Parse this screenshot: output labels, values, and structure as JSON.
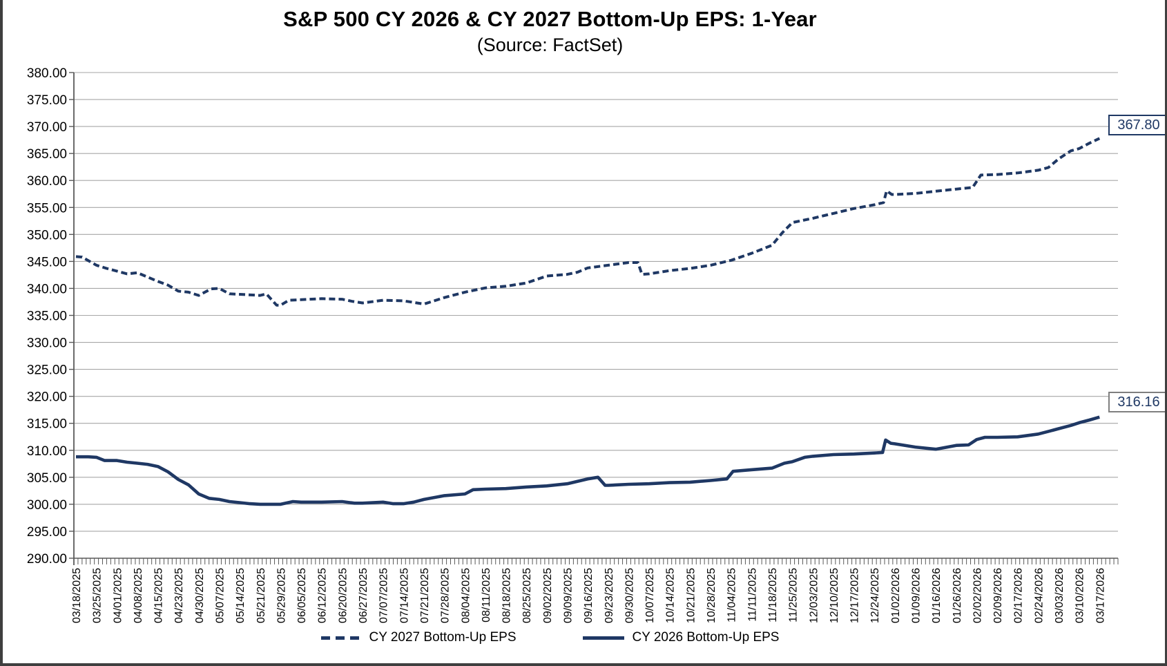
{
  "chart": {
    "title": "S&P 500 CY 2026 & CY 2027 Bottom-Up EPS: 1-Year",
    "subtitle": "(Source: FactSet)"
  },
  "chart_data": {
    "type": "line",
    "title": "S&P 500 CY 2026 & CY 2027 Bottom-Up EPS: 1-Year",
    "subtitle": "(Source: FactSet)",
    "grid": true,
    "legend_position": "bottom",
    "y_axis": {
      "min": 290,
      "max": 380,
      "step": 5
    },
    "y_labels": [
      "380.00",
      "375.00",
      "370.00",
      "365.00",
      "360.00",
      "355.00",
      "350.00",
      "345.00",
      "340.00",
      "335.00",
      "330.00",
      "325.00",
      "320.00",
      "315.00",
      "310.00",
      "305.00",
      "300.00",
      "295.00",
      "290.00"
    ],
    "x_labels": [
      "03/18/2025",
      "03/25/2025",
      "04/01/2025",
      "04/08/2025",
      "04/15/2025",
      "04/23/2025",
      "04/30/2025",
      "05/07/2025",
      "05/14/2025",
      "05/21/2025",
      "05/29/2025",
      "06/05/2025",
      "06/12/2025",
      "06/20/2025",
      "06/27/2025",
      "07/07/2025",
      "07/14/2025",
      "07/21/2025",
      "07/28/2025",
      "08/04/2025",
      "08/11/2025",
      "08/18/2025",
      "08/25/2025",
      "09/02/2025",
      "09/09/2025",
      "09/16/2025",
      "09/23/2025",
      "09/30/2025",
      "10/07/2025",
      "10/14/2025",
      "10/21/2025",
      "10/28/2025",
      "11/04/2025",
      "11/11/2025",
      "11/18/2025",
      "11/25/2025",
      "12/03/2025",
      "12/10/2025",
      "12/17/2025",
      "12/24/2025",
      "01/02/2026",
      "01/09/2026",
      "01/16/2026",
      "01/26/2026",
      "02/02/2026",
      "02/09/2026",
      "02/17/2026",
      "02/24/2026",
      "03/03/2026",
      "03/10/2026",
      "03/17/2026"
    ],
    "minor_ticks_per_label": 5,
    "colors": {
      "series": "#1f3864",
      "gridline": "#a6a6a6",
      "axis": "#595959",
      "tick": "#595959",
      "text": "#000000"
    },
    "series": [
      {
        "name": "CY 2027 Bottom-Up EPS",
        "style": "dashed",
        "color": "#1f3864",
        "end_label": "367.80",
        "end_value": 367.8,
        "points": [
          [
            0,
            345.9
          ],
          [
            0.3,
            345.8
          ],
          [
            1,
            344.3
          ],
          [
            1.5,
            343.7
          ],
          [
            2,
            343.2
          ],
          [
            2.5,
            342.7
          ],
          [
            3,
            342.9
          ],
          [
            4,
            341.3
          ],
          [
            4.5,
            340.6
          ],
          [
            5,
            339.5
          ],
          [
            5.5,
            339.3
          ],
          [
            6,
            338.7
          ],
          [
            6.6,
            339.9
          ],
          [
            7,
            340.0
          ],
          [
            7.5,
            339.0
          ],
          [
            8,
            338.9
          ],
          [
            9,
            338.7
          ],
          [
            9.3,
            339.0
          ],
          [
            9.8,
            336.9
          ],
          [
            10,
            336.9
          ],
          [
            10.4,
            337.8
          ],
          [
            11,
            337.9
          ],
          [
            12,
            338.1
          ],
          [
            13,
            338.0
          ],
          [
            13.5,
            337.6
          ],
          [
            14,
            337.3
          ],
          [
            15,
            337.8
          ],
          [
            16,
            337.7
          ],
          [
            17,
            337.1
          ],
          [
            18,
            338.3
          ],
          [
            19,
            339.3
          ],
          [
            20,
            340.1
          ],
          [
            21,
            340.4
          ],
          [
            22,
            341.0
          ],
          [
            23,
            342.3
          ],
          [
            24,
            342.6
          ],
          [
            24.5,
            343.0
          ],
          [
            25,
            343.8
          ],
          [
            26,
            344.3
          ],
          [
            27,
            344.8
          ],
          [
            27.45,
            344.8
          ],
          [
            27.65,
            342.6
          ],
          [
            28,
            342.7
          ],
          [
            29,
            343.3
          ],
          [
            30,
            343.7
          ],
          [
            31,
            344.3
          ],
          [
            32,
            345.2
          ],
          [
            33,
            346.5
          ],
          [
            34,
            348.0
          ],
          [
            34.5,
            350.3
          ],
          [
            35,
            352.2
          ],
          [
            36,
            353.0
          ],
          [
            37,
            353.9
          ],
          [
            38,
            354.8
          ],
          [
            39,
            355.5
          ],
          [
            39.45,
            355.9
          ],
          [
            39.6,
            358.1
          ],
          [
            39.85,
            357.4
          ],
          [
            40,
            357.4
          ],
          [
            41,
            357.6
          ],
          [
            42,
            358.0
          ],
          [
            43,
            358.4
          ],
          [
            43.8,
            358.7
          ],
          [
            44.2,
            361.0
          ],
          [
            45,
            361.1
          ],
          [
            46,
            361.4
          ],
          [
            47,
            361.9
          ],
          [
            47.5,
            362.4
          ],
          [
            48,
            364.0
          ],
          [
            48.6,
            365.5
          ],
          [
            49,
            365.9
          ],
          [
            49.5,
            366.9
          ],
          [
            50,
            367.8
          ]
        ]
      },
      {
        "name": "CY 2026 Bottom-Up EPS",
        "style": "solid",
        "color": "#1f3864",
        "end_label": "316.16",
        "end_value": 316.16,
        "points": [
          [
            0,
            308.8
          ],
          [
            0.6,
            308.8
          ],
          [
            1,
            308.7
          ],
          [
            1.4,
            308.1
          ],
          [
            2,
            308.1
          ],
          [
            2.5,
            307.8
          ],
          [
            3,
            307.6
          ],
          [
            3.5,
            307.4
          ],
          [
            4,
            307.0
          ],
          [
            4.5,
            306.0
          ],
          [
            5,
            304.6
          ],
          [
            5.5,
            303.6
          ],
          [
            6,
            301.9
          ],
          [
            6.5,
            301.1
          ],
          [
            7,
            300.9
          ],
          [
            7.5,
            300.5
          ],
          [
            8,
            300.3
          ],
          [
            8.5,
            300.1
          ],
          [
            9,
            300.0
          ],
          [
            10,
            300.0
          ],
          [
            10.6,
            300.5
          ],
          [
            11,
            300.4
          ],
          [
            12,
            300.4
          ],
          [
            13,
            300.5
          ],
          [
            13.6,
            300.2
          ],
          [
            14,
            300.2
          ],
          [
            15,
            300.4
          ],
          [
            15.5,
            300.1
          ],
          [
            16,
            300.1
          ],
          [
            16.5,
            300.4
          ],
          [
            17,
            300.9
          ],
          [
            18,
            301.6
          ],
          [
            19,
            301.9
          ],
          [
            19.4,
            302.7
          ],
          [
            20,
            302.8
          ],
          [
            21,
            302.9
          ],
          [
            22,
            303.2
          ],
          [
            23,
            303.4
          ],
          [
            24,
            303.8
          ],
          [
            25,
            304.7
          ],
          [
            25.5,
            305.0
          ],
          [
            25.85,
            303.5
          ],
          [
            26,
            303.5
          ],
          [
            27,
            303.7
          ],
          [
            28,
            303.8
          ],
          [
            29,
            304.0
          ],
          [
            30,
            304.1
          ],
          [
            31,
            304.4
          ],
          [
            31.8,
            304.7
          ],
          [
            32.1,
            306.1
          ],
          [
            33,
            306.4
          ],
          [
            34,
            306.7
          ],
          [
            34.6,
            307.6
          ],
          [
            35,
            307.9
          ],
          [
            35.6,
            308.7
          ],
          [
            36,
            308.9
          ],
          [
            37,
            309.2
          ],
          [
            38,
            309.3
          ],
          [
            39,
            309.5
          ],
          [
            39.4,
            309.6
          ],
          [
            39.55,
            311.9
          ],
          [
            39.8,
            311.3
          ],
          [
            40,
            311.2
          ],
          [
            41,
            310.6
          ],
          [
            42,
            310.2
          ],
          [
            43,
            310.9
          ],
          [
            43.6,
            311.0
          ],
          [
            44,
            312.0
          ],
          [
            44.4,
            312.4
          ],
          [
            45,
            312.4
          ],
          [
            46,
            312.5
          ],
          [
            47,
            313.0
          ],
          [
            47.6,
            313.6
          ],
          [
            48,
            314.0
          ],
          [
            48.6,
            314.6
          ],
          [
            49,
            315.1
          ],
          [
            49.5,
            315.6
          ],
          [
            50,
            316.16
          ]
        ]
      }
    ]
  },
  "legend": {
    "items": [
      {
        "label": "CY 2027 Bottom-Up EPS"
      },
      {
        "label": "CY 2026 Bottom-Up EPS"
      }
    ]
  }
}
